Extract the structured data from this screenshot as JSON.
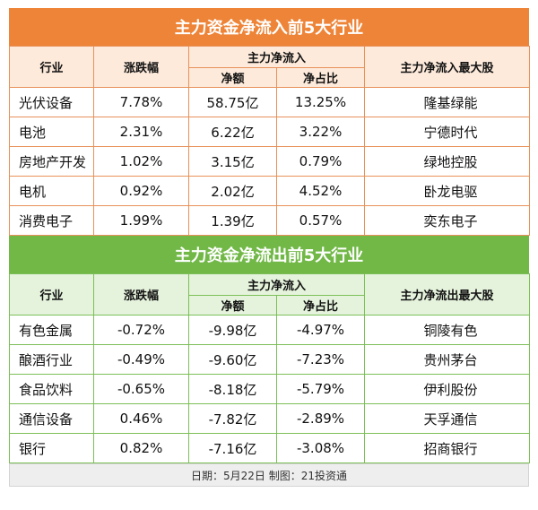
{
  "inflow": {
    "title": "主力资金净流入前5大行业",
    "headers": {
      "industry": "行业",
      "change": "涨跌幅",
      "main_net": "主力净流入",
      "net_amount": "净额",
      "net_ratio": "净占比",
      "top_stock": "主力净流入最大股"
    },
    "rows": [
      {
        "industry": "光伏设备",
        "change": "7.78%",
        "net_amount": "58.75亿",
        "net_ratio": "13.25%",
        "top_stock": "隆基绿能"
      },
      {
        "industry": "电池",
        "change": "2.31%",
        "net_amount": "6.22亿",
        "net_ratio": "3.22%",
        "top_stock": "宁德时代"
      },
      {
        "industry": "房地产开发",
        "change": "1.02%",
        "net_amount": "3.15亿",
        "net_ratio": "0.79%",
        "top_stock": "绿地控股"
      },
      {
        "industry": "电机",
        "change": "0.92%",
        "net_amount": "2.02亿",
        "net_ratio": "4.52%",
        "top_stock": "卧龙电驱"
      },
      {
        "industry": "消费电子",
        "change": "1.99%",
        "net_amount": "1.39亿",
        "net_ratio": "0.57%",
        "top_stock": "奕东电子"
      }
    ]
  },
  "outflow": {
    "title": "主力资金净流出前5大行业",
    "headers": {
      "industry": "行业",
      "change": "涨跌幅",
      "main_net": "主力净流入",
      "net_amount": "净额",
      "net_ratio": "净占比",
      "top_stock": "主力净流出最大股"
    },
    "rows": [
      {
        "industry": "有色金属",
        "change": "-0.72%",
        "net_amount": "-9.98亿",
        "net_ratio": "-4.97%",
        "top_stock": "铜陵有色"
      },
      {
        "industry": "酿酒行业",
        "change": "-0.49%",
        "net_amount": "-9.60亿",
        "net_ratio": "-7.23%",
        "top_stock": "贵州茅台"
      },
      {
        "industry": "食品饮料",
        "change": "-0.65%",
        "net_amount": "-8.18亿",
        "net_ratio": "-5.79%",
        "top_stock": "伊利股份"
      },
      {
        "industry": "通信设备",
        "change": "0.46%",
        "net_amount": "-7.82亿",
        "net_ratio": "-2.89%",
        "top_stock": "天孚通信"
      },
      {
        "industry": "银行",
        "change": "0.82%",
        "net_amount": "-7.16亿",
        "net_ratio": "-3.08%",
        "top_stock": "招商银行"
      }
    ]
  },
  "footer": "日期：5月22日 制图：21投资通",
  "colors": {
    "inflow_accent": "#ee8437",
    "outflow_accent": "#71b847"
  }
}
